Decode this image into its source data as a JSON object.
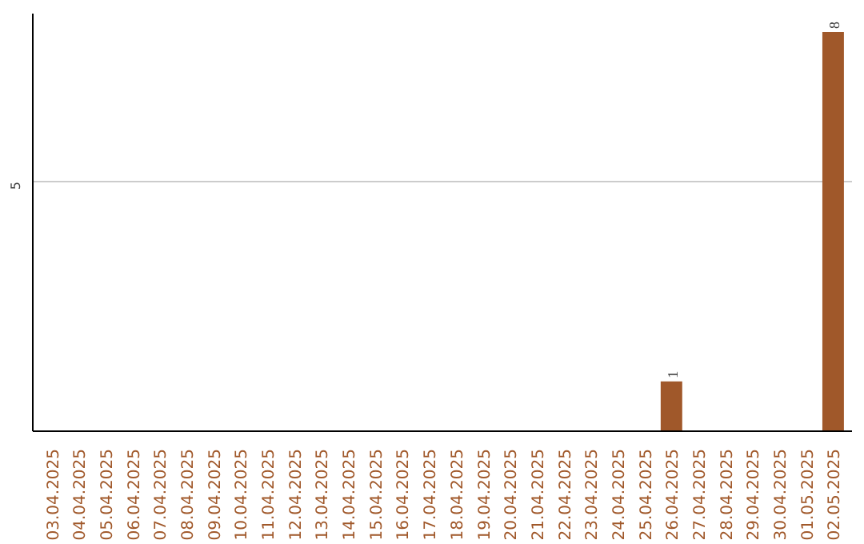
{
  "chart_data": {
    "type": "bar",
    "categories": [
      "03.04.2025",
      "04.04.2025",
      "05.04.2025",
      "06.04.2025",
      "07.04.2025",
      "08.04.2025",
      "09.04.2025",
      "10.04.2025",
      "11.04.2025",
      "12.04.2025",
      "13.04.2025",
      "14.04.2025",
      "15.04.2025",
      "16.04.2025",
      "17.04.2025",
      "18.04.2025",
      "19.04.2025",
      "20.04.2025",
      "21.04.2025",
      "22.04.2025",
      "23.04.2025",
      "24.04.2025",
      "25.04.2025",
      "26.04.2025",
      "27.04.2025",
      "28.04.2025",
      "29.04.2025",
      "30.04.2025",
      "01.05.2025",
      "02.05.2025"
    ],
    "values": [
      null,
      null,
      null,
      null,
      null,
      null,
      null,
      null,
      null,
      null,
      null,
      null,
      null,
      null,
      null,
      null,
      null,
      null,
      null,
      null,
      null,
      null,
      null,
      1,
      null,
      null,
      null,
      null,
      null,
      8
    ],
    "data_labels": true,
    "color": "#a0582a",
    "ylim": [
      0,
      8.37
    ],
    "yticks": [
      5
    ],
    "grid": "y"
  }
}
